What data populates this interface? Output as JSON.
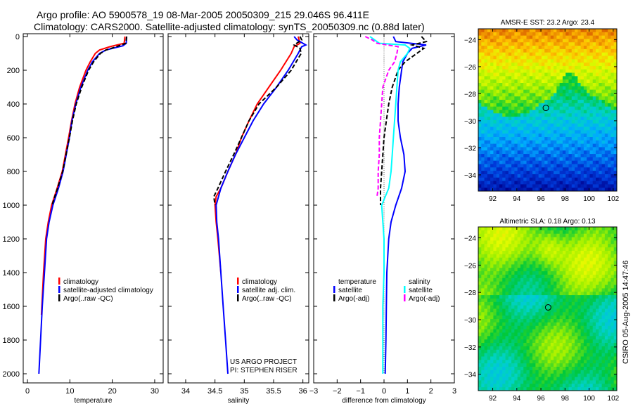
{
  "title": {
    "line1": "Argo profile: AO 5900578_19 08-Mar-2005 20050309_215 29.046S 96.411E",
    "line2": "Climatology: CARS2000. Satellite-adjusted climatology: synTS_20050309.nc (0.88d later)"
  },
  "side_label": "CSIRO 05-Aug-2005 14:47:46",
  "colors": {
    "red": "#ff0000",
    "blue": "#0000ff",
    "black": "#000000",
    "cyan": "#00ffff",
    "magenta": "#ff00ff"
  },
  "chart_data": [
    {
      "type": "line",
      "name": "temperature-profile",
      "xlabel": "temperature",
      "xlim": [
        -1,
        32
      ],
      "ylim": [
        2050,
        0
      ],
      "xticks": [
        "0",
        "10",
        "20",
        "30"
      ],
      "xtick_values": [
        0,
        10,
        20,
        30
      ],
      "yticks": [
        "0",
        "200",
        "400",
        "600",
        "800",
        "1000",
        "1200",
        "1400",
        "1600",
        "1800",
        "2000"
      ],
      "legend": [
        "climatology",
        "satellite-adjusted climatology",
        "Argo(..raw -QC)"
      ],
      "series": [
        {
          "name": "climatology",
          "color": "red",
          "dash": false,
          "depth": [
            0,
            40,
            60,
            80,
            100,
            150,
            200,
            300,
            400,
            500,
            600,
            800,
            900,
            1000,
            1100,
            1200,
            1400,
            1650
          ],
          "values": [
            23.0,
            22.8,
            19.5,
            17,
            16,
            14.8,
            13.8,
            12.3,
            11.2,
            10.4,
            9.7,
            8.2,
            7.0,
            5.7,
            4.9,
            4.3,
            3.8,
            3.3
          ]
        },
        {
          "name": "satellite-adjusted climatology",
          "color": "blue",
          "dash": false,
          "depth": [
            0,
            40,
            55,
            80,
            100,
            150,
            200,
            300,
            400,
            500,
            600,
            800,
            900,
            1000,
            1100,
            1200,
            1400,
            1600,
            1800,
            2000
          ],
          "values": [
            23.4,
            23.3,
            22.5,
            18.5,
            17,
            15.3,
            14.2,
            12.6,
            11.4,
            10.5,
            9.9,
            8.4,
            7.3,
            6.0,
            5.1,
            4.5,
            4.0,
            3.5,
            3.1,
            2.7
          ]
        },
        {
          "name": "Argo(..raw -QC)",
          "color": "black",
          "dash": true,
          "depth": [
            0,
            40,
            60,
            80,
            100,
            150,
            200,
            300,
            400,
            500,
            600,
            800,
            900,
            1000
          ],
          "values": [
            23.4,
            23.2,
            21,
            18.5,
            17.2,
            15.6,
            14.4,
            12.8,
            11.5,
            10.6,
            9.9,
            8.3,
            7.1,
            5.8
          ]
        }
      ]
    },
    {
      "type": "line",
      "name": "salinity-profile",
      "xlabel": "salinity",
      "xlim": [
        33.7,
        36.1
      ],
      "ylim": [
        2050,
        0
      ],
      "xticks": [
        "34",
        "34.5",
        "35",
        "35.5",
        "36"
      ],
      "xtick_values": [
        34,
        34.5,
        35,
        35.5,
        36
      ],
      "legend": [
        "climatology",
        "satellite adj. clim.",
        "Argo(..raw -QC)"
      ],
      "annotation": [
        "US ARGO PROJECT",
        "PI: STEPHEN RISER"
      ],
      "series": [
        {
          "name": "climatology",
          "color": "red",
          "dash": false,
          "depth": [
            0,
            40,
            60,
            100,
            200,
            300,
            400,
            500,
            600,
            700,
            800,
            900,
            950,
            1000,
            1100,
            1200,
            1400
          ],
          "values": [
            35.92,
            35.95,
            35.85,
            35.8,
            35.62,
            35.42,
            35.22,
            35.08,
            34.95,
            34.85,
            34.72,
            34.6,
            34.52,
            34.5,
            34.52,
            34.55,
            34.6
          ]
        },
        {
          "name": "satellite adj. clim.",
          "color": "blue",
          "dash": false,
          "depth": [
            0,
            20,
            50,
            60,
            100,
            200,
            300,
            400,
            500,
            600,
            700,
            800,
            900,
            1000,
            1100,
            1200,
            1400,
            1600,
            1800,
            2000
          ],
          "values": [
            35.85,
            35.9,
            36.05,
            35.98,
            35.92,
            35.75,
            35.55,
            35.33,
            35.15,
            35.0,
            34.85,
            34.72,
            34.6,
            34.52,
            34.53,
            34.56,
            34.6,
            34.64,
            34.68,
            34.72
          ]
        },
        {
          "name": "Argo(..raw -QC)",
          "color": "black",
          "dash": true,
          "depth": [
            0,
            20,
            50,
            70,
            100,
            200,
            300,
            400,
            500,
            600,
            700,
            800,
            900,
            950,
            1000
          ],
          "values": [
            35.95,
            35.98,
            35.85,
            35.95,
            35.97,
            35.8,
            35.55,
            35.25,
            35.08,
            34.95,
            34.82,
            34.68,
            34.55,
            34.48,
            34.5
          ]
        }
      ]
    },
    {
      "type": "line",
      "name": "difference-profile",
      "xlabel": "difference from climatology",
      "xlim": [
        -3,
        3
      ],
      "ylim": [
        2050,
        0
      ],
      "xticks": [
        "-3",
        "-2",
        "-1",
        "0",
        "1",
        "2",
        "3"
      ],
      "xtick_values": [
        -3,
        -2,
        -1,
        0,
        1,
        2,
        3
      ],
      "legend_temperature": {
        "heading": "temperature",
        "items": [
          "satellite",
          "Argo(-adj)"
        ]
      },
      "legend_salinity": {
        "heading": "salinity",
        "items": [
          "satellite",
          "Argo(-adj)"
        ]
      },
      "series": [
        {
          "name": "temperature satellite",
          "color": "blue",
          "dash": false,
          "depth": [
            0,
            30,
            50,
            70,
            100,
            150,
            200,
            300,
            400,
            500,
            600,
            700,
            800,
            900,
            1000,
            1100,
            1200,
            1400,
            1600,
            1800,
            2000
          ],
          "values": [
            0.4,
            0.5,
            1.8,
            1.2,
            1.0,
            0.8,
            0.75,
            0.65,
            0.6,
            0.6,
            0.7,
            0.85,
            0.9,
            0.75,
            0.5,
            0.3,
            0.2,
            0.12,
            0.1,
            0.08,
            0.05
          ]
        },
        {
          "name": "temperature Argo(-adj)",
          "color": "black",
          "dash": true,
          "depth": [
            0,
            30,
            50,
            70,
            100,
            150,
            200,
            300,
            400,
            500,
            600,
            700,
            800,
            900,
            1000
          ],
          "values": [
            1.6,
            1.8,
            1.2,
            1.7,
            1.4,
            0.9,
            0.6,
            0.35,
            0.2,
            0.1,
            0.0,
            -0.05,
            -0.1,
            -0.15,
            -0.15
          ]
        },
        {
          "name": "salinity satellite",
          "color": "cyan",
          "dash": false,
          "depth": [
            0,
            40,
            50,
            70,
            100,
            150,
            200,
            300,
            400,
            500,
            600,
            700,
            800,
            900,
            1000,
            1100,
            1200,
            1400,
            1600,
            1800,
            2000
          ],
          "values": [
            -0.6,
            -0.2,
            0.9,
            1.1,
            1.0,
            0.7,
            0.6,
            0.55,
            0.5,
            0.45,
            0.4,
            0.35,
            0.3,
            0.2,
            -0.1,
            -0.05,
            0.0,
            0.0,
            -0.05,
            -0.05,
            -0.05
          ]
        },
        {
          "name": "salinity Argo(-adj)",
          "color": "magenta",
          "dash": true,
          "depth": [
            0,
            20,
            40,
            60,
            100,
            150,
            200,
            300,
            400,
            500,
            600,
            700,
            800,
            900,
            950
          ],
          "values": [
            -0.8,
            -0.5,
            -0.3,
            0.6,
            0.55,
            0.45,
            0.2,
            -0.05,
            -0.1,
            -0.15,
            -0.2,
            -0.2,
            -0.25,
            -0.25,
            -0.3
          ]
        }
      ]
    },
    {
      "type": "heatmap",
      "name": "sst-map",
      "title": "AMSR-E SST: 23.2 Argo: 23.4",
      "xlim": [
        90.8,
        102.3
      ],
      "ylim": [
        -35.2,
        -23.2
      ],
      "xticks": [
        "92",
        "94",
        "96",
        "98",
        "100",
        "102"
      ],
      "xtick_values": [
        92,
        94,
        96,
        98,
        100,
        102
      ],
      "yticks": [
        "-24",
        "-26",
        "-28",
        "-30",
        "-32",
        "-34"
      ],
      "ytick_values": [
        -24,
        -26,
        -28,
        -30,
        -32,
        -34
      ],
      "marker": {
        "lon": 96.41,
        "lat": -29.05
      }
    },
    {
      "type": "heatmap",
      "name": "sla-map",
      "title": "Altimetric SLA: 0.18 Argo: 0.13",
      "xlim": [
        90.8,
        102.3
      ],
      "ylim": [
        -35.2,
        -23.2
      ],
      "xticks": [
        "92",
        "94",
        "96",
        "98",
        "100",
        "102"
      ],
      "xtick_values": [
        92,
        94,
        96,
        98,
        100,
        102
      ],
      "yticks": [
        "-24",
        "-26",
        "-28",
        "-30",
        "-32",
        "-34"
      ],
      "ytick_values": [
        -24,
        -26,
        -28,
        -30,
        -32,
        -34
      ],
      "marker": {
        "lon": 96.6,
        "lat": -29.1
      }
    }
  ]
}
